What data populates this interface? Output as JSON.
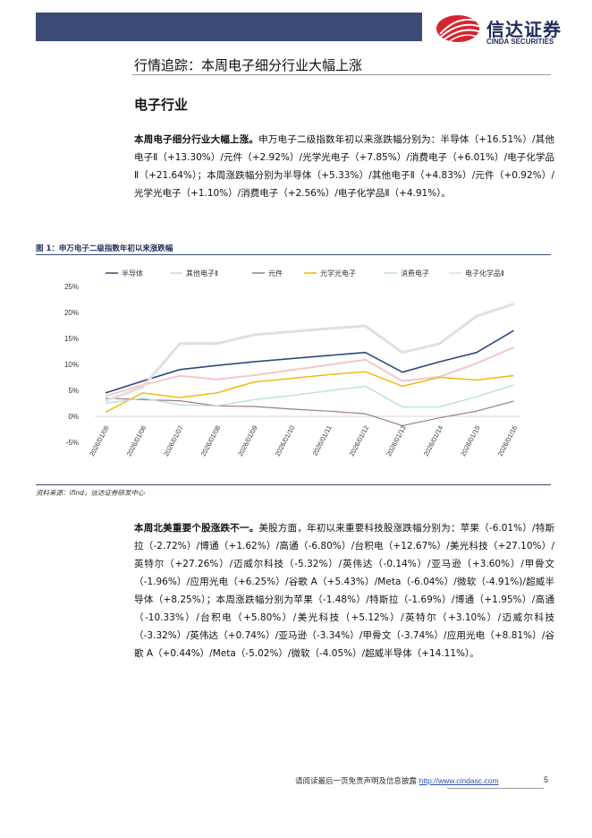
{
  "logo": {
    "cn": "信达证券",
    "en": "CINDA SECURITIES"
  },
  "page_title": "行情追踪：本周电子细分行业大幅上涨",
  "section_heading": "电子行业",
  "para1": {
    "lead": "本周电子细分行业大幅上涨。",
    "body": "申万电子二级指数年初以来涨跌幅分别为：半导体（+16.51%）/其他电子Ⅱ（+13.30%）/元件（+2.92%）/光学光电子（+7.85%）/消费电子（+6.01%）/电子化学品Ⅱ（+21.64%）；本周涨跌幅分别为半导体（+5.33%）/其他电子Ⅱ（+4.83%）/元件（+0.92%）/光学光电子（+1.10%）/消费电子（+2.56%）/电子化学品Ⅱ（+4.91%）。"
  },
  "figure_title": "图 1：申万电子二级指数年初以来涨跌幅",
  "source_note": "资料来源：ifind，信达证券研发中心",
  "para2": {
    "lead": "本周北美重要个股涨跌不一。",
    "body": "美股方面，年初以来重要科技股涨跌幅分别为：苹果（-6.01%）/特斯拉（-2.72%）/博通（+1.62%）/高通（-6.80%）/台积电（+12.67%）/美光科技（+27.10%）/英特尔（+27.26%）/迈威尔科技（-5.32%）/英伟达（-0.14%）/亚马逊（+3.60%）/甲骨文（-1.96%）/应用光电（+6.25%）/谷歌 A（+5.43%）/Meta（-6.04%）/微软（-4.91%)/超威半导体（+8.25%）；本周涨跌幅分别为苹果（-1.48%）/特斯拉（-1.69%）/博通（+1.95%）/高通（-10.33%）/台积电（+5.80%）/美光科技（+5.12%）/英特尔（+3.10%）/迈威尔科技（-3.32%）/英伟达（+0.74%）/亚马逊（-3.34%）/甲骨文（-3.74%）/应用光电（+8.81%）/谷歌 A（+0.44%）/Meta（-5.02%）/微软（-4.05%）/超威半导体（+14.11%）。"
  },
  "footer": {
    "text": "请阅读最后一页免责声明及信息披露 ",
    "link": "http://www.cindasc.com",
    "page": "5"
  },
  "colors": {
    "header": "#3b4a75",
    "brand": "#1f2d5c",
    "logo_red": "#d6252f"
  },
  "chart_data": {
    "type": "line",
    "categories": [
      "2026/01/05",
      "2026/01/06",
      "2026/01/07",
      "2026/01/08",
      "2026/01/09",
      "2026/01/10",
      "2026/01/11",
      "2026/01/12",
      "2026/01/13",
      "2026/01/14",
      "2026/01/15",
      "2026/01/16"
    ],
    "ylim": [
      -5,
      25
    ],
    "yticks": [
      "-5%",
      "0%",
      "5%",
      "10%",
      "15%",
      "20%",
      "25%"
    ],
    "grid": false,
    "legend": "top",
    "series": [
      {
        "name": "半导体",
        "color": "#2f4a7a",
        "width": 1.6,
        "values": [
          4.5,
          6.8,
          9.0,
          9.8,
          10.5,
          11.1,
          11.7,
          12.3,
          8.5,
          10.5,
          12.3,
          16.51
        ]
      },
      {
        "name": "其他电子Ⅱ",
        "color": "#f3c6cc",
        "width": 2.0,
        "values": [
          3.9,
          6.0,
          7.8,
          7.1,
          7.9,
          8.9,
          9.9,
          10.9,
          6.8,
          7.6,
          10.2,
          13.3
        ]
      },
      {
        "name": "元件",
        "color": "#9c7b8a",
        "width": 1.2,
        "values": [
          3.5,
          3.2,
          3.0,
          2.0,
          1.9,
          1.4,
          1.0,
          0.5,
          -1.8,
          -0.3,
          1.0,
          2.92
        ]
      },
      {
        "name": "光学光电子",
        "color": "#f0b400",
        "width": 1.4,
        "values": [
          0.8,
          4.5,
          3.6,
          4.5,
          6.6,
          7.3,
          8.0,
          8.6,
          5.8,
          7.5,
          7.0,
          7.85
        ]
      },
      {
        "name": "消费电子",
        "color": "#bcdedb",
        "width": 1.4,
        "values": [
          2.5,
          3.5,
          2.2,
          2.0,
          3.2,
          4.0,
          4.9,
          5.8,
          1.8,
          1.8,
          3.8,
          6.01
        ]
      },
      {
        "name": "电子化学品Ⅱ",
        "color": "#e2dee2",
        "width": 3.0,
        "values": [
          3.0,
          5.6,
          14.0,
          14.0,
          15.7,
          16.3,
          16.9,
          17.4,
          12.3,
          14.0,
          19.3,
          21.64
        ]
      }
    ]
  }
}
